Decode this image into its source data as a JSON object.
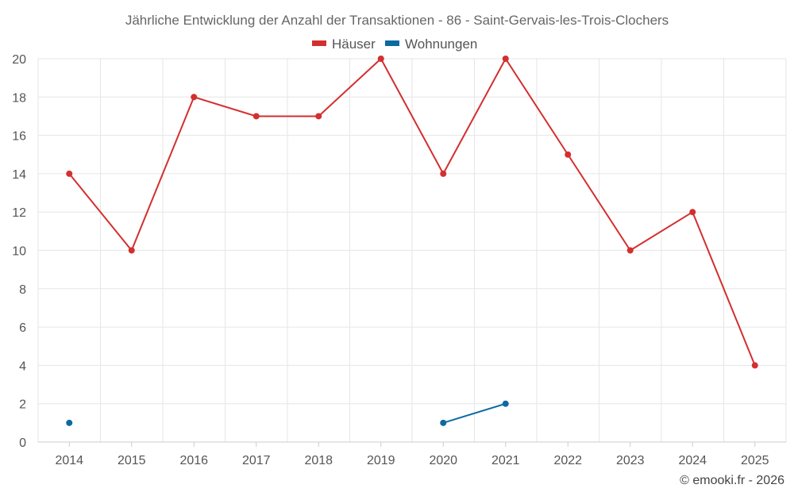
{
  "chart_data": {
    "type": "line",
    "title": "Jährliche Entwicklung der Anzahl der Transaktionen - 86 - Saint-Gervais-les-Trois-Clochers",
    "categories": [
      "2014",
      "2015",
      "2016",
      "2017",
      "2018",
      "2019",
      "2020",
      "2021",
      "2022",
      "2023",
      "2024",
      "2025"
    ],
    "series": [
      {
        "name": "Häuser",
        "color": "#d32f2f",
        "values": [
          14,
          10,
          18,
          17,
          17,
          20,
          14,
          20,
          15,
          10,
          12,
          4
        ]
      },
      {
        "name": "Wohnungen",
        "color": "#0b6aa2",
        "values": [
          1,
          null,
          null,
          null,
          null,
          null,
          1,
          2,
          null,
          null,
          null,
          null
        ]
      }
    ],
    "ylim": [
      0,
      20
    ],
    "yticks": [
      "0",
      "2",
      "4",
      "6",
      "8",
      "10",
      "12",
      "14",
      "16",
      "18",
      "20"
    ],
    "xlabel": "",
    "ylabel": "",
    "grid": true,
    "legend_position": "top-center"
  },
  "credit": "© emooki.fr - 2026"
}
